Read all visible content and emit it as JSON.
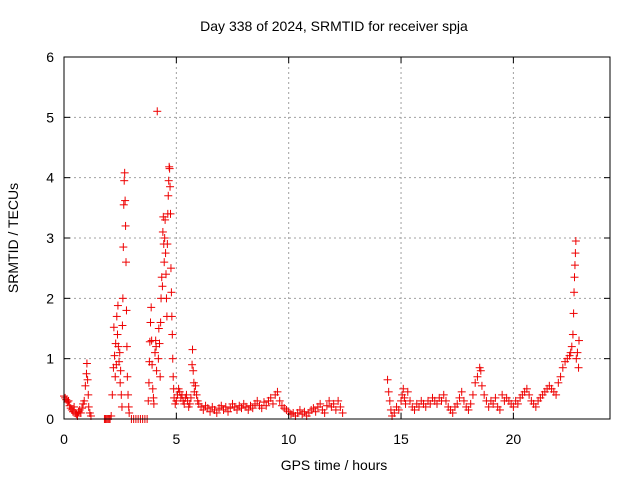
{
  "chart_data": {
    "type": "scatter",
    "title": "Day 338 of 2024, SRMTID for receiver spja",
    "xlabel": "GPS time / hours",
    "ylabel": "SRMTID / TECUs",
    "xlim": [
      0,
      24.3
    ],
    "ylim": [
      0,
      6
    ],
    "xticks": [
      0,
      5,
      10,
      15,
      20
    ],
    "yticks": [
      0,
      1,
      2,
      3,
      4,
      5,
      6
    ],
    "grid": true,
    "marker": "plus",
    "color": "#ee0000",
    "series": [
      {
        "name": "spja",
        "points": [
          [
            0.0,
            0.38
          ],
          [
            0.05,
            0.35
          ],
          [
            0.1,
            0.32
          ],
          [
            0.15,
            0.28
          ],
          [
            0.2,
            0.3
          ],
          [
            0.25,
            0.22
          ],
          [
            0.3,
            0.18
          ],
          [
            0.35,
            0.15
          ],
          [
            0.4,
            0.12
          ],
          [
            0.45,
            0.2
          ],
          [
            0.5,
            0.1
          ],
          [
            0.55,
            0.08
          ],
          [
            0.6,
            0.05
          ],
          [
            0.65,
            0.12
          ],
          [
            0.7,
            0.15
          ],
          [
            0.75,
            0.1
          ],
          [
            0.8,
            0.18
          ],
          [
            0.85,
            0.25
          ],
          [
            0.9,
            0.3
          ],
          [
            0.95,
            0.55
          ],
          [
            1.0,
            0.75
          ],
          [
            1.02,
            0.92
          ],
          [
            1.05,
            0.65
          ],
          [
            1.08,
            0.4
          ],
          [
            1.1,
            0.2
          ],
          [
            1.15,
            0.1
          ],
          [
            1.2,
            0.05
          ],
          [
            1.8,
            0.0
          ],
          [
            1.85,
            0.0
          ],
          [
            1.9,
            0.0
          ],
          [
            1.95,
            0.0
          ],
          [
            2.0,
            0.0
          ],
          [
            2.05,
            0.0
          ],
          [
            2.1,
            0.05
          ],
          [
            2.15,
            0.4
          ],
          [
            2.2,
            0.85
          ],
          [
            2.22,
            1.52
          ],
          [
            2.25,
            1.05
          ],
          [
            2.28,
            0.7
          ],
          [
            2.3,
            1.25
          ],
          [
            2.33,
            0.9
          ],
          [
            2.35,
            1.7
          ],
          [
            2.38,
            1.4
          ],
          [
            2.4,
            1.88
          ],
          [
            2.42,
            1.2
          ],
          [
            2.45,
            0.95
          ],
          [
            2.48,
            1.1
          ],
          [
            2.5,
            0.6
          ],
          [
            2.52,
            0.8
          ],
          [
            2.55,
            0.4
          ],
          [
            2.58,
            0.2
          ],
          [
            2.6,
            1.55
          ],
          [
            2.62,
            2.0
          ],
          [
            2.64,
            2.85
          ],
          [
            2.66,
            3.55
          ],
          [
            2.68,
            3.95
          ],
          [
            2.7,
            4.08
          ],
          [
            2.72,
            3.62
          ],
          [
            2.74,
            3.2
          ],
          [
            2.76,
            2.6
          ],
          [
            2.78,
            1.8
          ],
          [
            2.8,
            1.2
          ],
          [
            2.82,
            0.7
          ],
          [
            2.85,
            0.4
          ],
          [
            2.88,
            0.2
          ],
          [
            2.9,
            0.1
          ],
          [
            3.0,
            0.0
          ],
          [
            3.1,
            0.0
          ],
          [
            3.2,
            0.0
          ],
          [
            3.3,
            0.0
          ],
          [
            3.4,
            0.0
          ],
          [
            3.5,
            0.0
          ],
          [
            3.6,
            0.0
          ],
          [
            3.7,
            0.0
          ],
          [
            3.75,
            0.3
          ],
          [
            3.78,
            0.6
          ],
          [
            3.8,
            0.95
          ],
          [
            3.82,
            1.28
          ],
          [
            3.85,
            1.6
          ],
          [
            3.88,
            1.85
          ],
          [
            3.9,
            1.3
          ],
          [
            3.92,
            0.9
          ],
          [
            3.95,
            0.5
          ],
          [
            3.98,
            0.35
          ],
          [
            4.0,
            0.25
          ],
          [
            4.05,
            1.1
          ],
          [
            4.08,
            1.3
          ],
          [
            4.1,
            1.2
          ],
          [
            4.12,
            0.8
          ],
          [
            4.15,
            5.1
          ],
          [
            4.2,
            1.0
          ],
          [
            4.22,
            1.5
          ],
          [
            4.25,
            1.25
          ],
          [
            4.28,
            0.7
          ],
          [
            4.3,
            1.6
          ],
          [
            4.32,
            2.0
          ],
          [
            4.35,
            2.35
          ],
          [
            4.38,
            2.2
          ],
          [
            4.4,
            3.1
          ],
          [
            4.42,
            3.35
          ],
          [
            4.44,
            2.9
          ],
          [
            4.46,
            2.6
          ],
          [
            4.48,
            3.0
          ],
          [
            4.5,
            3.3
          ],
          [
            4.52,
            2.75
          ],
          [
            4.54,
            2.4
          ],
          [
            4.56,
            2.0
          ],
          [
            4.58,
            1.7
          ],
          [
            4.6,
            2.9
          ],
          [
            4.62,
            3.4
          ],
          [
            4.64,
            3.7
          ],
          [
            4.66,
            3.95
          ],
          [
            4.68,
            4.18
          ],
          [
            4.7,
            4.15
          ],
          [
            4.72,
            3.85
          ],
          [
            4.74,
            3.4
          ],
          [
            4.76,
            2.5
          ],
          [
            4.78,
            2.1
          ],
          [
            4.8,
            1.7
          ],
          [
            4.82,
            1.4
          ],
          [
            4.84,
            1.0
          ],
          [
            4.86,
            0.7
          ],
          [
            4.88,
            0.5
          ],
          [
            4.9,
            0.35
          ],
          [
            4.95,
            0.25
          ],
          [
            5.0,
            0.3
          ],
          [
            5.05,
            0.4
          ],
          [
            5.1,
            0.5
          ],
          [
            5.15,
            0.45
          ],
          [
            5.2,
            0.35
          ],
          [
            5.25,
            0.4
          ],
          [
            5.3,
            0.3
          ],
          [
            5.35,
            0.25
          ],
          [
            5.4,
            0.35
          ],
          [
            5.45,
            0.4
          ],
          [
            5.5,
            0.3
          ],
          [
            5.55,
            0.2
          ],
          [
            5.6,
            0.25
          ],
          [
            5.65,
            0.35
          ],
          [
            5.7,
            0.9
          ],
          [
            5.72,
            1.15
          ],
          [
            5.75,
            0.8
          ],
          [
            5.78,
            0.6
          ],
          [
            5.8,
            0.45
          ],
          [
            5.85,
            0.55
          ],
          [
            5.9,
            0.4
          ],
          [
            5.95,
            0.3
          ],
          [
            6.0,
            0.25
          ],
          [
            6.1,
            0.2
          ],
          [
            6.2,
            0.15
          ],
          [
            6.3,
            0.22
          ],
          [
            6.4,
            0.18
          ],
          [
            6.5,
            0.12
          ],
          [
            6.6,
            0.2
          ],
          [
            6.7,
            0.15
          ],
          [
            6.8,
            0.1
          ],
          [
            6.9,
            0.18
          ],
          [
            7.0,
            0.22
          ],
          [
            7.1,
            0.15
          ],
          [
            7.2,
            0.2
          ],
          [
            7.3,
            0.12
          ],
          [
            7.4,
            0.18
          ],
          [
            7.5,
            0.25
          ],
          [
            7.6,
            0.2
          ],
          [
            7.7,
            0.15
          ],
          [
            7.8,
            0.22
          ],
          [
            7.9,
            0.18
          ],
          [
            8.0,
            0.25
          ],
          [
            8.1,
            0.2
          ],
          [
            8.2,
            0.15
          ],
          [
            8.3,
            0.22
          ],
          [
            8.4,
            0.18
          ],
          [
            8.5,
            0.25
          ],
          [
            8.6,
            0.3
          ],
          [
            8.7,
            0.22
          ],
          [
            8.8,
            0.18
          ],
          [
            8.9,
            0.28
          ],
          [
            9.0,
            0.22
          ],
          [
            9.1,
            0.3
          ],
          [
            9.2,
            0.35
          ],
          [
            9.3,
            0.25
          ],
          [
            9.4,
            0.4
          ],
          [
            9.5,
            0.45
          ],
          [
            9.6,
            0.3
          ],
          [
            9.7,
            0.22
          ],
          [
            9.8,
            0.18
          ],
          [
            9.9,
            0.15
          ],
          [
            10.0,
            0.12
          ],
          [
            10.1,
            0.08
          ],
          [
            10.2,
            0.1
          ],
          [
            10.3,
            0.05
          ],
          [
            10.4,
            0.1
          ],
          [
            10.5,
            0.15
          ],
          [
            10.6,
            0.08
          ],
          [
            10.7,
            0.12
          ],
          [
            10.8,
            0.05
          ],
          [
            10.9,
            0.1
          ],
          [
            11.0,
            0.15
          ],
          [
            11.1,
            0.18
          ],
          [
            11.2,
            0.12
          ],
          [
            11.3,
            0.2
          ],
          [
            11.4,
            0.25
          ],
          [
            11.5,
            0.15
          ],
          [
            11.6,
            0.1
          ],
          [
            11.7,
            0.22
          ],
          [
            11.8,
            0.3
          ],
          [
            11.9,
            0.2
          ],
          [
            12.0,
            0.25
          ],
          [
            12.1,
            0.15
          ],
          [
            12.2,
            0.3
          ],
          [
            12.3,
            0.2
          ],
          [
            12.4,
            0.1
          ],
          [
            14.4,
            0.65
          ],
          [
            14.45,
            0.45
          ],
          [
            14.5,
            0.3
          ],
          [
            14.55,
            0.15
          ],
          [
            14.6,
            0.05
          ],
          [
            14.7,
            0.1
          ],
          [
            14.8,
            0.2
          ],
          [
            14.9,
            0.15
          ],
          [
            15.0,
            0.3
          ],
          [
            15.05,
            0.4
          ],
          [
            15.1,
            0.5
          ],
          [
            15.15,
            0.35
          ],
          [
            15.2,
            0.25
          ],
          [
            15.3,
            0.45
          ],
          [
            15.4,
            0.3
          ],
          [
            15.5,
            0.2
          ],
          [
            15.6,
            0.15
          ],
          [
            15.7,
            0.25
          ],
          [
            15.8,
            0.2
          ],
          [
            15.9,
            0.3
          ],
          [
            16.0,
            0.25
          ],
          [
            16.1,
            0.2
          ],
          [
            16.2,
            0.3
          ],
          [
            16.3,
            0.25
          ],
          [
            16.4,
            0.35
          ],
          [
            16.5,
            0.3
          ],
          [
            16.6,
            0.25
          ],
          [
            16.7,
            0.35
          ],
          [
            16.8,
            0.3
          ],
          [
            16.9,
            0.4
          ],
          [
            17.0,
            0.3
          ],
          [
            17.1,
            0.2
          ],
          [
            17.2,
            0.15
          ],
          [
            17.3,
            0.1
          ],
          [
            17.4,
            0.2
          ],
          [
            17.5,
            0.25
          ],
          [
            17.6,
            0.35
          ],
          [
            17.7,
            0.45
          ],
          [
            17.8,
            0.3
          ],
          [
            17.9,
            0.2
          ],
          [
            18.0,
            0.15
          ],
          [
            18.1,
            0.25
          ],
          [
            18.2,
            0.4
          ],
          [
            18.3,
            0.6
          ],
          [
            18.4,
            0.7
          ],
          [
            18.5,
            0.85
          ],
          [
            18.55,
            0.8
          ],
          [
            18.6,
            0.55
          ],
          [
            18.7,
            0.4
          ],
          [
            18.8,
            0.3
          ],
          [
            18.9,
            0.2
          ],
          [
            19.0,
            0.3
          ],
          [
            19.1,
            0.25
          ],
          [
            19.2,
            0.35
          ],
          [
            19.3,
            0.2
          ],
          [
            19.4,
            0.15
          ],
          [
            19.5,
            0.4
          ],
          [
            19.6,
            0.3
          ],
          [
            19.7,
            0.35
          ],
          [
            19.8,
            0.3
          ],
          [
            19.9,
            0.25
          ],
          [
            20.0,
            0.2
          ],
          [
            20.1,
            0.3
          ],
          [
            20.2,
            0.25
          ],
          [
            20.3,
            0.35
          ],
          [
            20.4,
            0.4
          ],
          [
            20.5,
            0.45
          ],
          [
            20.6,
            0.5
          ],
          [
            20.7,
            0.4
          ],
          [
            20.8,
            0.3
          ],
          [
            20.9,
            0.25
          ],
          [
            21.0,
            0.2
          ],
          [
            21.1,
            0.3
          ],
          [
            21.2,
            0.35
          ],
          [
            21.3,
            0.4
          ],
          [
            21.4,
            0.45
          ],
          [
            21.5,
            0.5
          ],
          [
            21.6,
            0.55
          ],
          [
            21.7,
            0.5
          ],
          [
            21.8,
            0.45
          ],
          [
            21.9,
            0.4
          ],
          [
            22.0,
            0.6
          ],
          [
            22.1,
            0.7
          ],
          [
            22.2,
            0.85
          ],
          [
            22.3,
            0.95
          ],
          [
            22.4,
            1.0
          ],
          [
            22.5,
            1.05
          ],
          [
            22.55,
            1.1
          ],
          [
            22.6,
            1.2
          ],
          [
            22.65,
            1.4
          ],
          [
            22.68,
            1.75
          ],
          [
            22.7,
            2.1
          ],
          [
            22.72,
            2.35
          ],
          [
            22.74,
            2.55
          ],
          [
            22.76,
            2.75
          ],
          [
            22.78,
            2.95
          ],
          [
            22.8,
            1.0
          ],
          [
            22.85,
            1.1
          ],
          [
            22.9,
            0.85
          ],
          [
            22.92,
            1.3
          ]
        ]
      }
    ]
  }
}
